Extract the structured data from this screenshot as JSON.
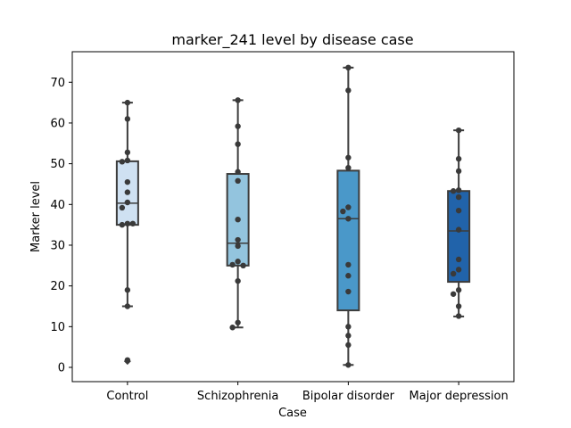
{
  "chart_data": {
    "type": "box",
    "title": "marker_241 level by disease case",
    "xlabel": "Case",
    "ylabel": "Marker level",
    "ylim": [
      -3.5,
      77.5
    ],
    "yticks": [
      0,
      10,
      20,
      30,
      40,
      50,
      60,
      70
    ],
    "ytick_labels": [
      "0",
      "10",
      "20",
      "30",
      "40",
      "50",
      "60",
      "70"
    ],
    "grid": false,
    "categories": [
      "Control",
      "Schizophrenia",
      "Bipolar disorder",
      "Major depression"
    ],
    "colors": [
      "#cfe1f2",
      "#93c4de",
      "#4a98c9",
      "#2163aa"
    ],
    "boxes": [
      {
        "category": "Control",
        "q1": 35.0,
        "median": 40.3,
        "q3": 50.6,
        "whisker_low": 15.0,
        "whisker_high": 65.0,
        "outliers": [
          1.5
        ]
      },
      {
        "category": "Schizophrenia",
        "q1": 25.0,
        "median": 30.5,
        "q3": 47.5,
        "whisker_low": 9.8,
        "whisker_high": 65.6,
        "outliers": []
      },
      {
        "category": "Bipolar disorder",
        "q1": 14.0,
        "median": 36.5,
        "q3": 48.3,
        "whisker_low": 0.6,
        "whisker_high": 73.6,
        "outliers": []
      },
      {
        "category": "Major depression",
        "q1": 21.0,
        "median": 33.5,
        "q3": 43.3,
        "whisker_low": 12.5,
        "whisker_high": 58.2,
        "outliers": []
      }
    ],
    "points": [
      [
        65.0,
        61.0,
        52.8,
        50.8,
        50.5,
        45.5,
        43.0,
        40.5,
        39.2,
        35.3,
        35.0,
        35.3,
        19.0,
        15.0,
        1.8
      ],
      [
        65.6,
        59.2,
        54.8,
        48.0,
        45.8,
        36.3,
        31.3,
        29.8,
        26.0,
        25.2,
        25.0,
        21.2,
        11.0,
        9.8
      ],
      [
        73.6,
        68.0,
        51.5,
        49.0,
        39.3,
        38.3,
        36.5,
        25.2,
        22.5,
        18.6,
        10.0,
        7.8,
        5.5,
        0.6
      ],
      [
        58.2,
        51.2,
        48.2,
        43.5,
        43.3,
        41.8,
        38.5,
        33.8,
        26.5,
        24.0,
        23.0,
        19.0,
        18.0,
        15.0,
        12.6
      ]
    ]
  }
}
